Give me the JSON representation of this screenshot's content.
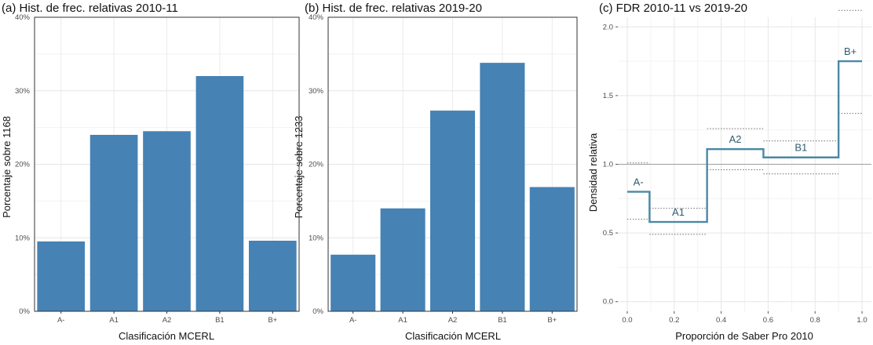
{
  "chart_data": [
    {
      "type": "bar",
      "title": "(a) Hist. de frec. relativas 2010-11",
      "xlabel": "Clasificación MCERL",
      "ylabel": "Porcentaje sobre  1168",
      "categories": [
        "A-",
        "A1",
        "A2",
        "B1",
        "B+"
      ],
      "values": [
        9.5,
        24.0,
        24.5,
        32.0,
        9.6
      ],
      "ylim": [
        0,
        40
      ],
      "yticks": [
        "0%",
        "10%",
        "20%",
        "30%",
        "40%"
      ],
      "bar_color": "#4682b4",
      "grid": true
    },
    {
      "type": "bar",
      "title": "(b) Hist. de frec. relativas 2019-20",
      "xlabel": "Clasificación MCERL",
      "ylabel": "Porcentaje sobre  1233",
      "categories": [
        "A-",
        "A1",
        "A2",
        "B1",
        "B+"
      ],
      "values": [
        7.7,
        14.0,
        27.3,
        33.8,
        16.9
      ],
      "ylim": [
        0,
        40
      ],
      "yticks": [
        "0%",
        "10%",
        "20%",
        "30%",
        "40%"
      ],
      "bar_color": "#4682b4",
      "grid": true
    },
    {
      "type": "line",
      "title": "(c) FDR 2010-11 vs 2019-20",
      "xlabel": "Proporción de Saber Pro 2010",
      "ylabel": "Densidad relativa",
      "xlim": [
        0,
        1
      ],
      "ylim": [
        0,
        2.0
      ],
      "xticks": [
        "0.0",
        "0.2",
        "0.4",
        "0.6",
        "0.8",
        "1.0"
      ],
      "yticks": [
        "0.0",
        "0.5",
        "1.0",
        "1.5",
        "2.0"
      ],
      "reference_line": 1.0,
      "line_color": "#4a88a6",
      "segments": [
        {
          "label": "A-",
          "x": [
            0.0,
            0.095
          ],
          "density": 0.8,
          "ci": [
            0.6,
            1.01
          ]
        },
        {
          "label": "A1",
          "x": [
            0.095,
            0.34
          ],
          "density": 0.58,
          "ci": [
            0.49,
            0.68
          ]
        },
        {
          "label": "A2",
          "x": [
            0.34,
            0.58
          ],
          "density": 1.11,
          "ci": [
            0.96,
            1.26
          ]
        },
        {
          "label": "B1",
          "x": [
            0.58,
            0.9
          ],
          "density": 1.05,
          "ci": [
            0.93,
            1.17
          ]
        },
        {
          "label": "B+",
          "x": [
            0.9,
            1.0
          ],
          "density": 1.75,
          "ci": [
            1.37,
            2.12
          ]
        }
      ],
      "grid": true
    }
  ]
}
